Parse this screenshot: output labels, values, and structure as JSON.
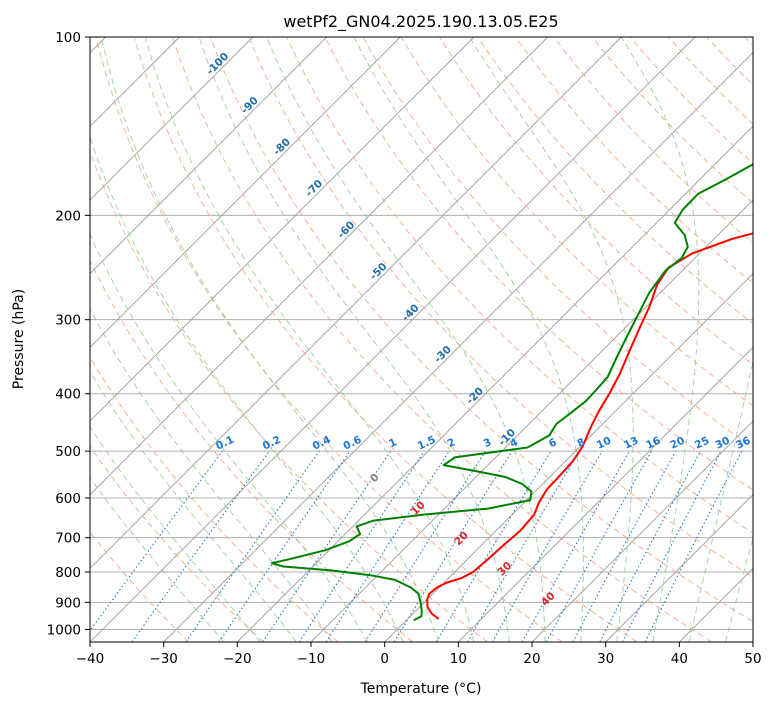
{
  "chart_data": {
    "type": "line",
    "title": "wetPf2_GN04.2025.190.13.05.E25",
    "xlabel": "Temperature (°C)",
    "ylabel": "Pressure (hPa)",
    "xlim": [
      -40,
      50
    ],
    "ylim": [
      1050,
      100
    ],
    "y_scale": "log",
    "x_ticks": [
      -40,
      -30,
      -20,
      -10,
      0,
      10,
      20,
      30,
      40,
      50
    ],
    "x_tick_labels": [
      "−40",
      "−30",
      "−20",
      "−10",
      "0",
      "10",
      "20",
      "30",
      "40",
      "50"
    ],
    "y_ticks": [
      100,
      200,
      300,
      400,
      500,
      600,
      700,
      800,
      900,
      1000
    ],
    "y_tick_labels": [
      "100",
      "200",
      "300",
      "400",
      "500",
      "600",
      "700",
      "800",
      "900",
      "1000"
    ],
    "grid": true,
    "series": [
      {
        "color": "#ff0000",
        "points": [
          [
            4.2,
            960
          ],
          [
            2.5,
            940
          ],
          [
            1.0,
            915
          ],
          [
            0.0,
            890
          ],
          [
            -0.5,
            870
          ],
          [
            -0.3,
            850
          ],
          [
            0.3,
            835
          ],
          [
            1.8,
            818
          ],
          [
            2.5,
            800
          ],
          [
            2.8,
            760
          ],
          [
            3.0,
            720
          ],
          [
            3.3,
            680
          ],
          [
            3.0,
            640
          ],
          [
            2.0,
            610
          ],
          [
            1.3,
            580
          ],
          [
            1.2,
            550
          ],
          [
            1.0,
            520
          ],
          [
            0.3,
            490
          ],
          [
            -1.0,
            460
          ],
          [
            -2.2,
            430
          ],
          [
            -3.2,
            400
          ],
          [
            -4.5,
            370
          ],
          [
            -6.2,
            340
          ],
          [
            -8.0,
            310
          ],
          [
            -9.6,
            285
          ],
          [
            -11.5,
            262
          ],
          [
            -12.3,
            245
          ],
          [
            -11.0,
            232
          ],
          [
            -7.5,
            219
          ],
          [
            -2.0,
            207
          ],
          [
            2.0,
            198
          ],
          [
            4.5,
            189
          ],
          [
            6.2,
            180
          ],
          [
            7.4,
            168
          ],
          [
            9.0,
            152
          ],
          [
            10.5,
            140
          ],
          [
            11.0,
            132
          ],
          [
            13.0,
            120
          ],
          [
            15.5,
            112
          ],
          [
            21.5,
            100
          ]
        ]
      },
      {
        "color": "#008000",
        "points": [
          [
            1.0,
            965
          ],
          [
            1.5,
            950
          ],
          [
            0.8,
            930
          ],
          [
            -0.5,
            900
          ],
          [
            -2.0,
            870
          ],
          [
            -3.8,
            850
          ],
          [
            -7.0,
            825
          ],
          [
            -11.0,
            810
          ],
          [
            -17.0,
            795
          ],
          [
            -24.0,
            783
          ],
          [
            -26.0,
            773
          ],
          [
            -24.0,
            760
          ],
          [
            -20.5,
            735
          ],
          [
            -18.5,
            710
          ],
          [
            -18.0,
            690
          ],
          [
            -19.5,
            670
          ],
          [
            -18.0,
            655
          ],
          [
            -12.0,
            640
          ],
          [
            -4.0,
            625
          ],
          [
            0.5,
            605
          ],
          [
            -0.5,
            585
          ],
          [
            -2.8,
            568
          ],
          [
            -6.0,
            553
          ],
          [
            -11.0,
            540
          ],
          [
            -16.0,
            528
          ],
          [
            -15.5,
            512
          ],
          [
            -11.0,
            502
          ],
          [
            -7.0,
            493
          ],
          [
            -5.7,
            470
          ],
          [
            -6.3,
            450
          ],
          [
            -5.8,
            430
          ],
          [
            -5.4,
            412
          ],
          [
            -5.5,
            395
          ],
          [
            -5.7,
            375
          ],
          [
            -7.0,
            350
          ],
          [
            -8.6,
            320
          ],
          [
            -10.0,
            295
          ],
          [
            -11.5,
            270
          ],
          [
            -12.3,
            248
          ],
          [
            -11.8,
            236
          ],
          [
            -12.5,
            226
          ],
          [
            -14.5,
            216
          ],
          [
            -17.5,
            206
          ],
          [
            -18.2,
            196
          ],
          [
            -18.3,
            184
          ],
          [
            -16.5,
            174
          ],
          [
            -14.5,
            162
          ],
          [
            -13.0,
            148
          ],
          [
            -10.0,
            138
          ],
          [
            -7.0,
            130
          ],
          [
            -6.0,
            122
          ],
          [
            -3.5,
            112
          ],
          [
            -1.5,
            100
          ]
        ]
      }
    ],
    "dry_adiabat_labels": [
      "-100",
      "-90",
      "-80",
      "-70",
      "-60",
      "-50",
      "-40",
      "-30",
      "-20",
      "-10"
    ],
    "mixing_ratio_labels": [
      "0.1",
      "0.2",
      "0.4",
      "0.6",
      "1",
      "1.5",
      "2",
      "3",
      "4",
      "6",
      "8",
      "10",
      "13",
      "16",
      "20",
      "25",
      "30",
      "36"
    ],
    "moist_adiabat_labels": [
      "0",
      "10",
      "20",
      "30",
      "40"
    ],
    "colors": {
      "temperature": "#ff0000",
      "dewpoint": "#008000",
      "dry_adiabat": "#f4a582",
      "moist_adiabat": "#8fc98f",
      "mixing_ratio": "#1f77d4",
      "isotherm": "#9b9b9b",
      "adiabat_label": "#1f6ea8",
      "moist_label": "#d62728",
      "zero_label": "#7f7f7f"
    }
  }
}
